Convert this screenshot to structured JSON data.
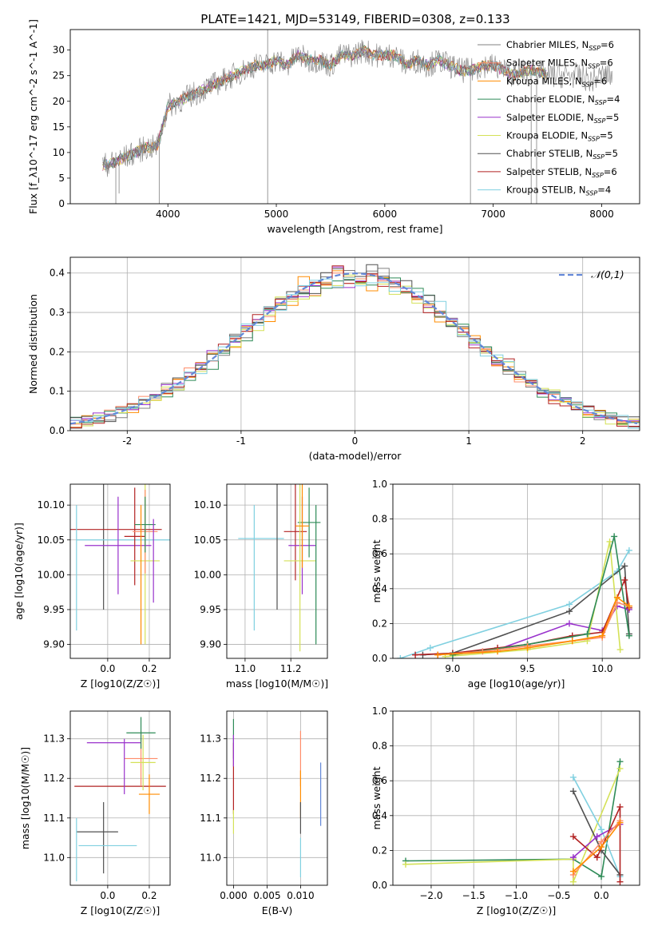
{
  "figure_title": "PLATE=1421, MJD=53149, FIBERID=0308, z=0.133",
  "series_colors": [
    "#808080",
    "#ff8c69",
    "#ff8c00",
    "#2e8b57",
    "#9932cc",
    "#d4e157",
    "#505050",
    "#b22222",
    "#80d0e0"
  ],
  "chart_data": [
    {
      "id": "spectrum",
      "type": "line",
      "xlabel": "wavelength [Angstrom, rest frame]",
      "ylabel": "Flux [f_λ10^-17 erg cm^-2 s^-1 A^-1]",
      "xlim": [
        3100,
        8350
      ],
      "ylim": [
        0,
        34
      ],
      "xticks": [
        4000,
        5000,
        6000,
        7000,
        8000
      ],
      "yticks": [
        0,
        5,
        10,
        15,
        20,
        25,
        30
      ],
      "grid": false,
      "legend_position": "right",
      "legend": [
        {
          "label": "Chabrier MILES, N_SSP=6",
          "color": "#808080"
        },
        {
          "label": "Salpeter MILES, N_SSP=6",
          "color": "#ff8c69"
        },
        {
          "label": "Kroupa MILES, N_SSP=6",
          "color": "#ff8c00"
        },
        {
          "label": "Chabrier ELODIE, N_SSP=4",
          "color": "#2e8b57"
        },
        {
          "label": "Salpeter ELODIE, N_SSP=5",
          "color": "#9932cc"
        },
        {
          "label": "Kroupa ELODIE, N_SSP=5",
          "color": "#d4e157"
        },
        {
          "label": "Chabrier STELIB, N_SSP=5",
          "color": "#505050"
        },
        {
          "label": "Salpeter STELIB, N_SSP=6",
          "color": "#b22222"
        },
        {
          "label": "Kroupa STELIB, N_SSP=4",
          "color": "#80d0e0"
        }
      ],
      "spectrum_x": [
        3400,
        3500,
        3600,
        3700,
        3800,
        3900,
        4000,
        4100,
        4200,
        4300,
        4400,
        4500,
        4600,
        4700,
        4800,
        4900,
        5000,
        5100,
        5200,
        5300,
        5400,
        5500,
        5600,
        5700,
        5800,
        5900,
        6000,
        6100,
        6200,
        6300,
        6400,
        6500,
        6600,
        6700,
        6800,
        6900,
        7000,
        7100,
        7200,
        7300,
        7400,
        7500,
        7600,
        7700,
        7800,
        7900,
        8000,
        8100
      ],
      "spectrum_y": [
        7.5,
        8,
        9,
        10,
        11,
        11,
        19,
        20,
        21,
        22,
        23,
        24,
        25,
        26,
        27,
        27,
        28,
        27,
        29,
        28,
        28,
        27,
        29,
        29,
        30,
        29,
        29,
        29,
        27,
        28,
        27,
        28,
        27,
        26,
        26,
        27,
        27,
        26,
        25,
        26,
        26,
        25,
        25,
        25,
        25,
        24,
        25,
        25
      ]
    },
    {
      "id": "residuals",
      "type": "line",
      "xlabel": "(data-model)/error",
      "ylabel": "Normed distribution",
      "xlim": [
        -2.5,
        2.5
      ],
      "ylim": [
        0,
        0.44
      ],
      "xticks": [
        -2,
        -1,
        0,
        1,
        2
      ],
      "yticks": [
        0.0,
        0.1,
        0.2,
        0.3,
        0.4
      ],
      "grid": true,
      "legend_position": "top-right",
      "legend": [
        {
          "label": "𝒩(0,1)",
          "color": "#6488d8"
        }
      ]
    },
    {
      "id": "age-vs-Z",
      "type": "scatter",
      "xlabel": "Z [log10(Z/Z☉)]",
      "ylabel": "age  [log10(age/yr)]",
      "xlim": [
        -0.18,
        0.3
      ],
      "ylim": [
        9.88,
        10.13
      ],
      "xticks": [
        0.0,
        0.2
      ],
      "yticks": [
        9.9,
        9.95,
        10.0,
        10.05,
        10.1
      ],
      "grid": true,
      "points": [
        {
          "x": -0.02,
          "y": 10.04,
          "xerr": 0.0,
          "yerr": 0.09,
          "color": "#505050"
        },
        {
          "x": 0.04,
          "y": 10.065,
          "xerr": 0.22,
          "yerr": 0.0,
          "color": "#b22222"
        },
        {
          "x": 0.08,
          "y": 10.05,
          "xerr": 0.23,
          "yerr": 0.0,
          "color": "#80d0e0"
        },
        {
          "x": 0.05,
          "y": 10.042,
          "xerr": 0.16,
          "yerr": 0.07,
          "color": "#9932cc"
        },
        {
          "x": 0.13,
          "y": 10.055,
          "xerr": 0.05,
          "yerr": 0.07,
          "color": "#b22222"
        },
        {
          "x": 0.18,
          "y": 10.02,
          "xerr": 0.07,
          "yerr": 0.12,
          "color": "#d4e157"
        },
        {
          "x": 0.18,
          "y": 10.062,
          "xerr": 0.06,
          "yerr": 0.06,
          "color": "#ff8c69"
        },
        {
          "x": 0.18,
          "y": 10.072,
          "xerr": 0.05,
          "yerr": 0.04,
          "color": "#2e8b57"
        },
        {
          "x": -0.15,
          "y": 10.01,
          "xerr": 0.0,
          "yerr": 0.09,
          "color": "#80d0e0"
        },
        {
          "x": 0.16,
          "y": 10.0,
          "xerr": 0.0,
          "yerr": 0.1,
          "color": "#ff8c00"
        },
        {
          "x": 0.22,
          "y": 10.02,
          "xerr": 0.0,
          "yerr": 0.06,
          "color": "#9932cc"
        }
      ]
    },
    {
      "id": "age-vs-mass",
      "type": "scatter",
      "xlabel": "mass [log10(M/M☉)]",
      "ylabel": "",
      "xlim": [
        10.92,
        11.36
      ],
      "ylim": [
        9.88,
        10.13
      ],
      "xticks": [
        11.0,
        11.2
      ],
      "yticks": [
        9.9,
        9.95,
        10.0,
        10.05,
        10.1
      ],
      "grid": true,
      "points": [
        {
          "x": 11.07,
          "y": 10.052,
          "xerr": 0.1,
          "yerr": 0.0,
          "color": "#80d0e0"
        },
        {
          "x": 11.14,
          "y": 10.04,
          "xerr": 0.0,
          "yerr": 0.09,
          "color": "#505050"
        },
        {
          "x": 11.22,
          "y": 10.062,
          "xerr": 0.05,
          "yerr": 0.07,
          "color": "#b22222"
        },
        {
          "x": 11.25,
          "y": 10.042,
          "xerr": 0.06,
          "yerr": 0.07,
          "color": "#9932cc"
        },
        {
          "x": 11.28,
          "y": 10.075,
          "xerr": 0.05,
          "yerr": 0.05,
          "color": "#2e8b57"
        },
        {
          "x": 11.24,
          "y": 10.02,
          "xerr": 0.07,
          "yerr": 0.13,
          "color": "#d4e157"
        },
        {
          "x": 11.25,
          "y": 10.07,
          "xerr": 0.03,
          "yerr": 0.06,
          "color": "#ff8c00"
        },
        {
          "x": 11.31,
          "y": 10.0,
          "xerr": 0.0,
          "yerr": 0.1,
          "color": "#2e8b57"
        },
        {
          "x": 11.04,
          "y": 10.01,
          "xerr": 0.0,
          "yerr": 0.09,
          "color": "#80d0e0"
        }
      ]
    },
    {
      "id": "massweight-vs-age",
      "type": "line",
      "xlabel": "age  [log10(age/yr)]",
      "ylabel": "mass weight",
      "xlim": [
        8.6,
        10.25
      ],
      "ylim": [
        0,
        1.0
      ],
      "xticks": [
        9.0,
        9.5,
        10.0
      ],
      "yticks": [
        0.0,
        0.2,
        0.4,
        0.6,
        0.8,
        1.0
      ],
      "grid": true,
      "series": [
        {
          "color": "#80d0e0",
          "x": [
            8.65,
            8.85,
            9.78,
            10.1,
            10.18
          ],
          "y": [
            0.0,
            0.06,
            0.31,
            0.5,
            0.62
          ]
        },
        {
          "color": "#505050",
          "x": [
            8.8,
            9.0,
            9.78,
            10.15,
            10.18
          ],
          "y": [
            0.02,
            0.03,
            0.27,
            0.53,
            0.14
          ]
        },
        {
          "color": "#9932cc",
          "x": [
            8.9,
            9.3,
            9.78,
            10.0,
            10.1,
            10.18
          ],
          "y": [
            0.02,
            0.05,
            0.2,
            0.16,
            0.3,
            0.28
          ]
        },
        {
          "color": "#b22222",
          "x": [
            8.75,
            9.0,
            9.3,
            9.5,
            9.8,
            10.0,
            10.15,
            10.18
          ],
          "y": [
            0.02,
            0.03,
            0.06,
            0.08,
            0.13,
            0.15,
            0.45,
            0.29
          ]
        },
        {
          "color": "#d4e157",
          "x": [
            8.95,
            9.5,
            9.9,
            10.05,
            10.12
          ],
          "y": [
            0.01,
            0.05,
            0.1,
            0.67,
            0.05
          ]
        },
        {
          "color": "#2e8b57",
          "x": [
            9.0,
            9.5,
            9.9,
            10.08,
            10.18
          ],
          "y": [
            0.02,
            0.08,
            0.14,
            0.7,
            0.13
          ]
        },
        {
          "color": "#ff8c69",
          "x": [
            8.9,
            9.2,
            9.5,
            9.8,
            10.0,
            10.1,
            10.18
          ],
          "y": [
            0.02,
            0.04,
            0.07,
            0.1,
            0.12,
            0.32,
            0.3
          ]
        },
        {
          "color": "#ff8c00",
          "x": [
            8.9,
            9.3,
            9.5,
            9.8,
            10.0,
            10.1,
            10.18
          ],
          "y": [
            0.02,
            0.04,
            0.06,
            0.1,
            0.13,
            0.35,
            0.3
          ]
        }
      ]
    },
    {
      "id": "mass-vs-Z",
      "type": "scatter",
      "xlabel": "Z [log10(Z/Z☉)]",
      "ylabel": "mass [log10(M/M☉)]",
      "xlim": [
        -0.18,
        0.3
      ],
      "ylim": [
        10.93,
        11.37
      ],
      "xticks": [
        0.0,
        0.2
      ],
      "yticks": [
        11.0,
        11.1,
        11.2,
        11.3
      ],
      "grid": true,
      "points": [
        {
          "x": -0.05,
          "y": 11.065,
          "xerr": 0.1,
          "yerr": 0.0,
          "color": "#505050"
        },
        {
          "x": -0.02,
          "y": 11.05,
          "xerr": 0.0,
          "yerr": 0.09,
          "color": "#505050"
        },
        {
          "x": 0.0,
          "y": 11.03,
          "xerr": 0.14,
          "yerr": 0.0,
          "color": "#80d0e0"
        },
        {
          "x": 0.06,
          "y": 11.18,
          "xerr": 0.22,
          "yerr": 0.0,
          "color": "#b22222"
        },
        {
          "x": 0.03,
          "y": 11.29,
          "xerr": 0.13,
          "yerr": 0.0,
          "color": "#9932cc"
        },
        {
          "x": 0.16,
          "y": 11.25,
          "xerr": 0.08,
          "yerr": 0.07,
          "color": "#ff8c69"
        },
        {
          "x": 0.17,
          "y": 11.24,
          "xerr": 0.06,
          "yerr": 0.07,
          "color": "#d4e157"
        },
        {
          "x": 0.16,
          "y": 11.315,
          "xerr": 0.07,
          "yerr": 0.04,
          "color": "#2e8b57"
        },
        {
          "x": 0.2,
          "y": 11.16,
          "xerr": 0.05,
          "yerr": 0.05,
          "color": "#ff8c00"
        },
        {
          "x": -0.15,
          "y": 11.02,
          "xerr": 0.0,
          "yerr": 0.08,
          "color": "#80d0e0"
        },
        {
          "x": 0.08,
          "y": 11.23,
          "xerr": 0.0,
          "yerr": 0.07,
          "color": "#9932cc"
        }
      ]
    },
    {
      "id": "mass-vs-EBV",
      "type": "scatter",
      "xlabel": "E(B-V)",
      "ylabel": "",
      "xlim": [
        -0.001,
        0.014
      ],
      "ylim": [
        10.93,
        11.37
      ],
      "xticks": [
        0.0,
        0.005,
        0.01
      ],
      "xticklabels": [
        "0.000",
        "0.005",
        "0.010"
      ],
      "yticks": [
        11.0,
        11.1,
        11.2,
        11.3
      ],
      "grid": true,
      "points": [
        {
          "x": 0.0,
          "y": 11.3,
          "xerr": 0.0,
          "yerr": 0.05,
          "color": "#2e8b57"
        },
        {
          "x": 0.0,
          "y": 11.2,
          "xerr": 0.0,
          "yerr": 0.09,
          "color": "#b22222"
        },
        {
          "x": 0.0,
          "y": 11.09,
          "xerr": 0.0,
          "yerr": 0.03,
          "color": "#d4e157"
        },
        {
          "x": 0.0,
          "y": 11.27,
          "xerr": 0.0,
          "yerr": 0.04,
          "color": "#9932cc"
        },
        {
          "x": 0.01,
          "y": 11.25,
          "xerr": 0.0,
          "yerr": 0.07,
          "color": "#ff8c69"
        },
        {
          "x": 0.01,
          "y": 11.16,
          "xerr": 0.0,
          "yerr": 0.06,
          "color": "#ff8c00"
        },
        {
          "x": 0.01,
          "y": 11.1,
          "xerr": 0.0,
          "yerr": 0.04,
          "color": "#505050"
        },
        {
          "x": 0.01,
          "y": 11.0,
          "xerr": 0.0,
          "yerr": 0.05,
          "color": "#80d0e0"
        },
        {
          "x": 0.013,
          "y": 11.16,
          "xerr": 0.0,
          "yerr": 0.08,
          "color": "#6488d8"
        }
      ]
    },
    {
      "id": "massweight-vs-Z",
      "type": "line",
      "xlabel": "Z [log10(Z/Z☉)]",
      "ylabel": "mass weight",
      "xlim": [
        -2.45,
        0.45
      ],
      "ylim": [
        0,
        1.0
      ],
      "xticks": [
        -2.0,
        -1.5,
        -1.0,
        -0.5,
        0.0
      ],
      "xticklabels": [
        "−2.0",
        "−1.5",
        "−1.0",
        "−0.5",
        "0.0"
      ],
      "yticks": [
        0.0,
        0.2,
        0.4,
        0.6,
        0.8,
        1.0
      ],
      "grid": true,
      "series": [
        {
          "color": "#2e8b57",
          "x": [
            -2.3,
            -0.33,
            0.0,
            0.22
          ],
          "y": [
            0.14,
            0.15,
            0.05,
            0.71
          ]
        },
        {
          "color": "#d4e157",
          "x": [
            -2.3,
            -0.33,
            -0.33,
            0.22
          ],
          "y": [
            0.12,
            0.15,
            0.02,
            0.67
          ]
        },
        {
          "color": "#80d0e0",
          "x": [
            -0.33,
            0.0,
            0.22
          ],
          "y": [
            0.62,
            0.32,
            0.05
          ]
        },
        {
          "color": "#505050",
          "x": [
            -0.33,
            0.0,
            0.22
          ],
          "y": [
            0.54,
            0.2,
            0.06
          ]
        },
        {
          "color": "#9932cc",
          "x": [
            -0.33,
            -0.05,
            0.22
          ],
          "y": [
            0.16,
            0.28,
            0.35
          ]
        },
        {
          "color": "#b22222",
          "x": [
            -0.33,
            -0.05,
            0.22,
            0.22
          ],
          "y": [
            0.28,
            0.16,
            0.45,
            0.02
          ]
        },
        {
          "color": "#ff8c69",
          "x": [
            -0.33,
            0.0,
            0.22
          ],
          "y": [
            0.06,
            0.25,
            0.37
          ]
        },
        {
          "color": "#ff8c00",
          "x": [
            -0.33,
            0.0,
            0.22
          ],
          "y": [
            0.08,
            0.22,
            0.36
          ]
        }
      ]
    }
  ]
}
